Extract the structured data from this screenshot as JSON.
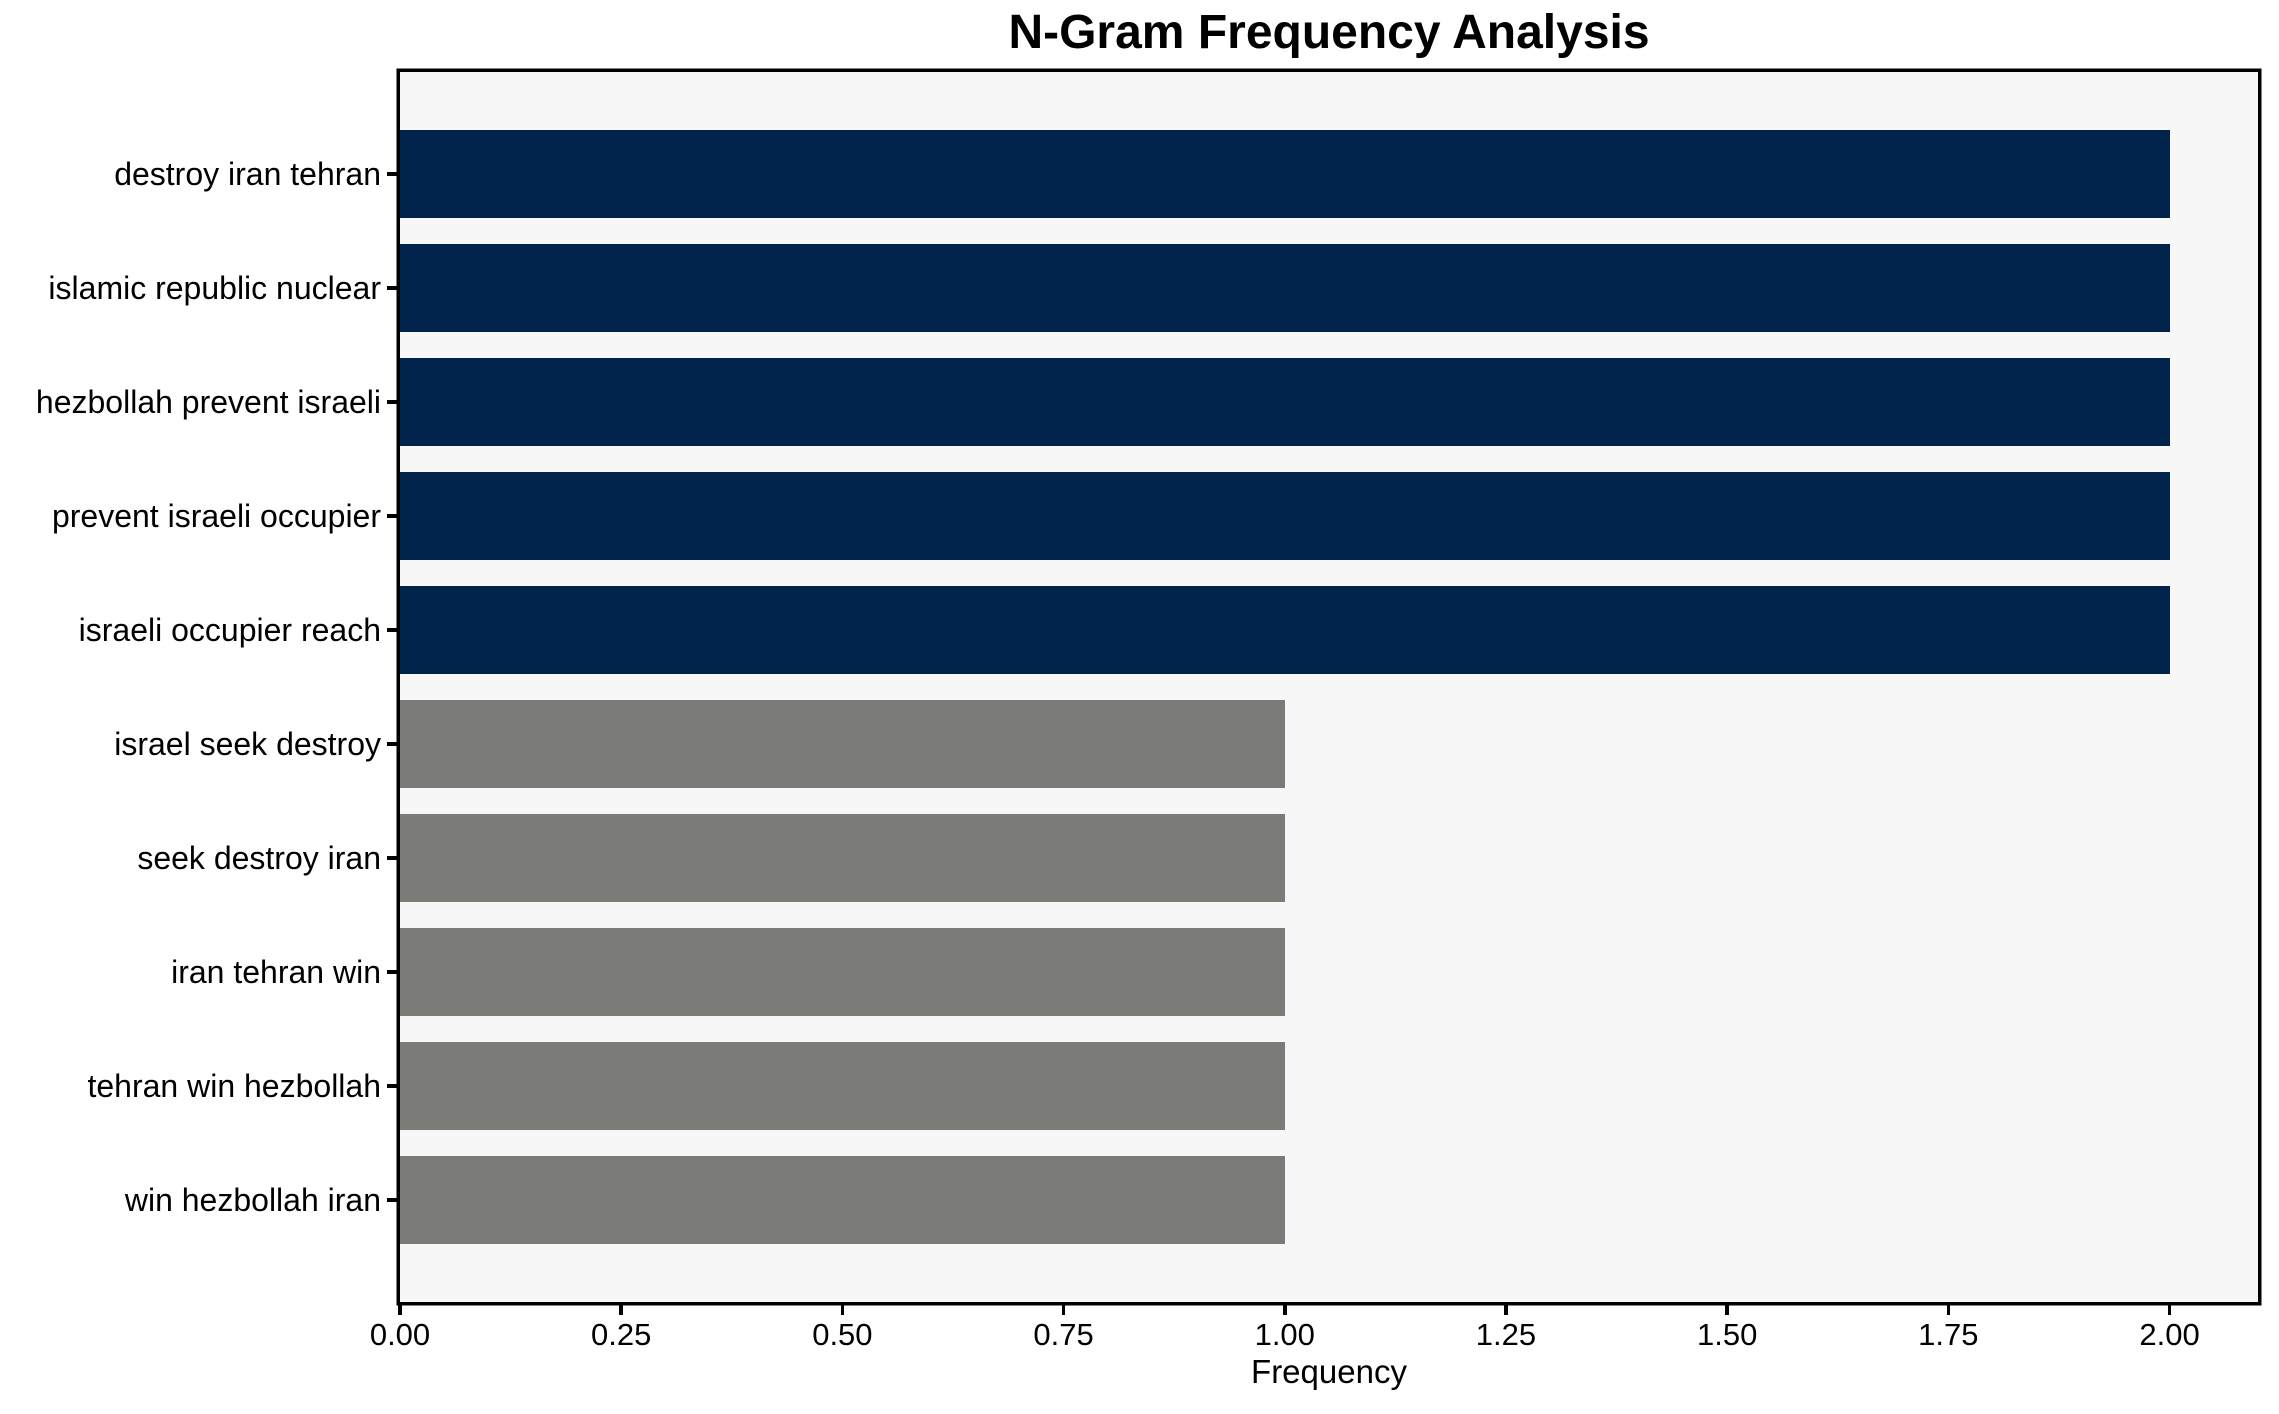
{
  "chart_data": {
    "type": "bar",
    "orientation": "horizontal",
    "title": "N-Gram Frequency Analysis",
    "xlabel": "Frequency",
    "ylabel": "",
    "categories": [
      "destroy iran tehran",
      "islamic republic nuclear",
      "hezbollah prevent israeli",
      "prevent israeli occupier",
      "israeli occupier reach",
      "israel seek destroy",
      "seek destroy iran",
      "iran tehran win",
      "tehran win hezbollah",
      "win hezbollah iran"
    ],
    "values": [
      2,
      2,
      2,
      2,
      2,
      1,
      1,
      1,
      1,
      1
    ],
    "bar_colors": [
      "#02234b",
      "#02234b",
      "#02234b",
      "#02234b",
      "#02234b",
      "#7b7b78",
      "#7b7b78",
      "#7b7b78",
      "#7b7b78",
      "#7b7b78"
    ],
    "xlim": [
      0,
      2.1
    ],
    "xticks": [
      {
        "value": 0.0,
        "label": "0.00"
      },
      {
        "value": 0.25,
        "label": "0.25"
      },
      {
        "value": 0.5,
        "label": "0.50"
      },
      {
        "value": 0.75,
        "label": "0.75"
      },
      {
        "value": 1.0,
        "label": "1.00"
      },
      {
        "value": 1.25,
        "label": "1.25"
      },
      {
        "value": 1.5,
        "label": "1.50"
      },
      {
        "value": 1.75,
        "label": "1.75"
      },
      {
        "value": 2.0,
        "label": "2.00"
      }
    ],
    "grid": false,
    "legend": null,
    "plot_background": "#f7f7f7",
    "figure_background": "#ffffff",
    "axis_color": "#000000",
    "text_color": "#000000"
  }
}
